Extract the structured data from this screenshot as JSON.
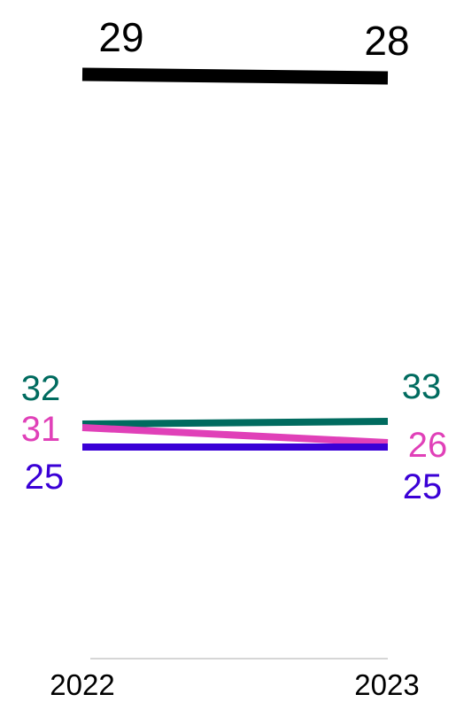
{
  "chart_data": {
    "type": "line",
    "x": [
      "2022",
      "2023"
    ],
    "series": [
      {
        "values": [
          29,
          28
        ],
        "color": "#000000"
      },
      {
        "values": [
          32,
          33
        ],
        "color": "#006b5f"
      },
      {
        "values": [
          31,
          26
        ],
        "color": "#e040b8"
      },
      {
        "values": [
          25,
          25
        ],
        "color": "#3a00d6"
      }
    ],
    "grid": false,
    "legend": "none"
  }
}
